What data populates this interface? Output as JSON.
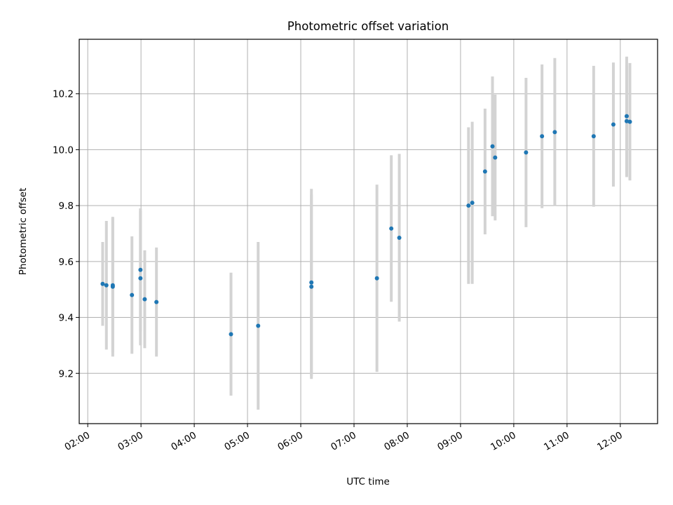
{
  "chart_data": {
    "type": "scatter",
    "title": "Photometric offset variation",
    "xlabel": "UTC time",
    "ylabel": "Photometric offset",
    "grid": true,
    "x_unit": "hours UTC",
    "xlim": [
      1.84,
      12.7
    ],
    "ylim": [
      9.02,
      10.395
    ],
    "xticks": [
      {
        "value": 2,
        "label": "02:00"
      },
      {
        "value": 3,
        "label": "03:00"
      },
      {
        "value": 4,
        "label": "04:00"
      },
      {
        "value": 5,
        "label": "05:00"
      },
      {
        "value": 6,
        "label": "06:00"
      },
      {
        "value": 7,
        "label": "07:00"
      },
      {
        "value": 8,
        "label": "08:00"
      },
      {
        "value": 9,
        "label": "09:00"
      },
      {
        "value": 10,
        "label": "10:00"
      },
      {
        "value": 11,
        "label": "11:00"
      },
      {
        "value": 12,
        "label": "12:00"
      }
    ],
    "yticks": [
      {
        "value": 9.2,
        "label": "9.2"
      },
      {
        "value": 9.4,
        "label": "9.4"
      },
      {
        "value": 9.6,
        "label": "9.6"
      },
      {
        "value": 9.8,
        "label": "9.8"
      },
      {
        "value": 10.0,
        "label": "10.0"
      },
      {
        "value": 10.2,
        "label": "10.2"
      }
    ],
    "colors": {
      "marker": "#1f77b4",
      "errorbar": "#d3d3d3",
      "grid": "#b0b0b0"
    },
    "points": [
      {
        "x": 2.28,
        "y": 9.52,
        "err": 0.15
      },
      {
        "x": 2.35,
        "y": 9.515,
        "err": 0.23
      },
      {
        "x": 2.47,
        "y": 9.515,
        "err": 0.24
      },
      {
        "x": 2.47,
        "y": 9.51,
        "err": 0.25
      },
      {
        "x": 2.83,
        "y": 9.48,
        "err": 0.21
      },
      {
        "x": 2.99,
        "y": 9.57,
        "err": 0.22
      },
      {
        "x": 2.99,
        "y": 9.54,
        "err": 0.24
      },
      {
        "x": 3.07,
        "y": 9.465,
        "err": 0.175
      },
      {
        "x": 3.29,
        "y": 9.455,
        "err": 0.195
      },
      {
        "x": 4.69,
        "y": 9.34,
        "err": 0.22
      },
      {
        "x": 5.2,
        "y": 9.37,
        "err": 0.3
      },
      {
        "x": 6.2,
        "y": 9.525,
        "err": 0.335
      },
      {
        "x": 6.2,
        "y": 9.51,
        "err": 0.33
      },
      {
        "x": 7.43,
        "y": 9.54,
        "err": 0.335
      },
      {
        "x": 7.7,
        "y": 9.718,
        "err": 0.262
      },
      {
        "x": 7.85,
        "y": 9.685,
        "err": 0.3
      },
      {
        "x": 9.15,
        "y": 9.8,
        "err": 0.28
      },
      {
        "x": 9.22,
        "y": 9.81,
        "err": 0.29
      },
      {
        "x": 9.46,
        "y": 9.922,
        "err": 0.225
      },
      {
        "x": 9.6,
        "y": 10.012,
        "err": 0.25
      },
      {
        "x": 9.65,
        "y": 9.972,
        "err": 0.225
      },
      {
        "x": 10.23,
        "y": 9.99,
        "err": 0.267
      },
      {
        "x": 10.53,
        "y": 10.048,
        "err": 0.257
      },
      {
        "x": 10.77,
        "y": 10.063,
        "err": 0.265
      },
      {
        "x": 11.5,
        "y": 10.048,
        "err": 0.252
      },
      {
        "x": 11.87,
        "y": 10.09,
        "err": 0.222
      },
      {
        "x": 12.12,
        "y": 10.12,
        "err": 0.213
      },
      {
        "x": 12.12,
        "y": 10.102,
        "err": 0.2
      },
      {
        "x": 12.18,
        "y": 10.1,
        "err": 0.21
      }
    ]
  }
}
